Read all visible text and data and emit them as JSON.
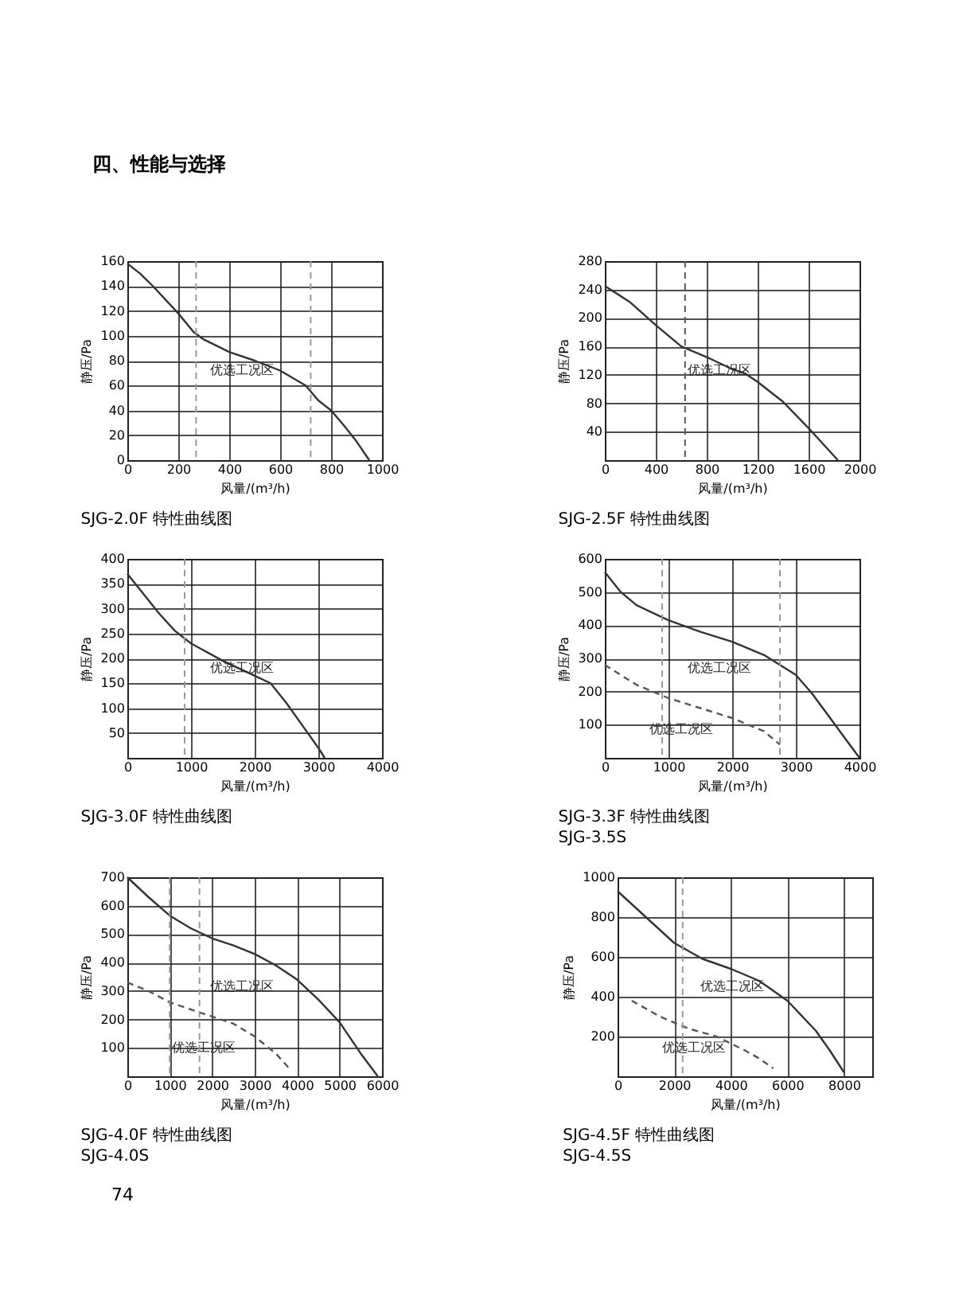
{
  "chart_data": [
    {
      "type": "line",
      "title": "SJG-2.0F 特性曲线图",
      "xlabel": "风量/(m³/h)",
      "ylabel": "静压/Pa",
      "xlim": [
        0,
        1000
      ],
      "xticks": [
        0,
        200,
        400,
        600,
        800,
        1000
      ],
      "ylim": [
        0,
        160
      ],
      "yticks": [
        0,
        20,
        40,
        60,
        80,
        100,
        120,
        140,
        160
      ],
      "grid": true,
      "marker": "none",
      "series": [
        {
          "color": "#333333",
          "line_style": "solid",
          "x": [
            0,
            50,
            100,
            200,
            260,
            300,
            400,
            500,
            600,
            700,
            750,
            800,
            850,
            900,
            950
          ],
          "values": [
            158,
            150,
            140,
            118,
            103,
            97,
            87,
            80,
            72,
            60,
            48,
            40,
            28,
            15,
            0
          ]
        }
      ],
      "ref_lines": [
        {
          "axis": "x",
          "value": 270,
          "color": "#999999",
          "line_style": "dashed"
        },
        {
          "axis": "x",
          "value": 720,
          "color": "#999999",
          "line_style": "dashed"
        }
      ],
      "annotations": [
        "四、性能与选择",
        "优选工况区"
      ]
    },
    {
      "type": "line",
      "title": "SJG-2.5F 特性曲线图",
      "xlabel": "风量/(m³/h)",
      "ylabel": "静压/Pa",
      "xlim": [
        0,
        2000
      ],
      "xticks": [
        0,
        400,
        800,
        1200,
        1600,
        2000
      ],
      "ylim": [
        0,
        280
      ],
      "yticks": [
        40,
        80,
        120,
        160,
        200,
        240,
        280
      ],
      "grid": true,
      "marker": "none",
      "series": [
        {
          "color": "#333333",
          "line_style": "solid",
          "x": [
            0,
            200,
            400,
            600,
            800,
            1000,
            1100,
            1200,
            1400,
            1600,
            1830
          ],
          "values": [
            245,
            222,
            190,
            160,
            145,
            128,
            122,
            110,
            82,
            45,
            0
          ]
        }
      ],
      "ref_lines": [
        {
          "axis": "x",
          "value": 630,
          "color": "#555555",
          "line_style": "dashed"
        }
      ],
      "annotations": [
        "优选工况区"
      ]
    },
    {
      "type": "line",
      "title": "SJG-3.0F 特性曲线图",
      "xlabel": "风量/(m³/h)",
      "ylabel": "静压/Pa",
      "xlim": [
        0,
        4000
      ],
      "xticks": [
        0,
        1000,
        2000,
        3000,
        4000
      ],
      "ylim": [
        0,
        400
      ],
      "yticks": [
        50,
        100,
        150,
        200,
        250,
        300,
        350,
        400
      ],
      "grid": true,
      "marker": "none",
      "series": [
        {
          "color": "#333333",
          "line_style": "solid",
          "x": [
            0,
            250,
            500,
            750,
            1000,
            1500,
            2000,
            2250,
            2500,
            2750,
            3000,
            3100
          ],
          "values": [
            370,
            330,
            290,
            255,
            230,
            195,
            165,
            150,
            110,
            65,
            20,
            0
          ]
        }
      ],
      "ref_lines": [
        {
          "axis": "x",
          "value": 900,
          "color": "#999999",
          "line_style": "dashed"
        }
      ],
      "annotations": [
        "优选工况区"
      ]
    },
    {
      "type": "line",
      "title": "SJG-3.3F 特性曲线图",
      "subtitle": "SJG-3.5S",
      "xlabel": "风量/(m³/h)",
      "ylabel": "静压/Pa",
      "xlim": [
        0,
        4000
      ],
      "xticks": [
        0,
        1000,
        2000,
        3000,
        4000
      ],
      "ylim": [
        0,
        600
      ],
      "yticks": [
        100,
        200,
        300,
        400,
        500,
        600
      ],
      "grid": true,
      "marker": "none",
      "series": [
        {
          "color": "#333333",
          "line_style": "solid",
          "x": [
            0,
            250,
            500,
            1000,
            1500,
            2000,
            2500,
            3000,
            3250,
            3500,
            3750,
            4000
          ],
          "values": [
            560,
            500,
            460,
            415,
            380,
            350,
            310,
            250,
            195,
            130,
            65,
            0
          ]
        },
        {
          "color": "#555555",
          "line_style": "dashed",
          "x": [
            0,
            500,
            1000,
            1500,
            2000,
            2500,
            2750
          ],
          "values": [
            280,
            220,
            180,
            150,
            120,
            80,
            40
          ]
        }
      ],
      "ref_lines": [
        {
          "axis": "x",
          "value": 900,
          "color": "#999999",
          "line_style": "dashed"
        },
        {
          "axis": "x",
          "value": 2750,
          "color": "#999999",
          "line_style": "dashed"
        }
      ],
      "annotations": [
        "优选工况区",
        "优选工况区"
      ]
    },
    {
      "type": "line",
      "title": "SJG-4.0F 特性曲线图",
      "subtitle": "SJG-4.0S",
      "xlabel": "风量/(m³/h)",
      "ylabel": "静压/Pa",
      "xlim": [
        0,
        6000
      ],
      "xticks": [
        0,
        1000,
        2000,
        3000,
        4000,
        5000,
        6000
      ],
      "ylim": [
        0,
        700
      ],
      "yticks": [
        100,
        200,
        300,
        400,
        500,
        600,
        700
      ],
      "grid": true,
      "marker": "none",
      "series": [
        {
          "color": "#333333",
          "line_style": "solid",
          "x": [
            0,
            500,
            1000,
            1500,
            2000,
            2500,
            3000,
            3500,
            4000,
            4500,
            5000,
            5500,
            5900
          ],
          "values": [
            700,
            630,
            565,
            520,
            485,
            460,
            430,
            390,
            340,
            270,
            190,
            80,
            0
          ]
        },
        {
          "color": "#555555",
          "line_style": "dashed",
          "x": [
            0,
            500,
            1000,
            1500,
            2000,
            2500,
            3000,
            3500,
            3800
          ],
          "values": [
            330,
            300,
            260,
            235,
            210,
            185,
            140,
            80,
            30
          ]
        }
      ],
      "ref_lines": [
        {
          "axis": "x",
          "value": 1000,
          "color": "#999999",
          "line_style": "dashed"
        },
        {
          "axis": "x",
          "value": 1700,
          "color": "#999999",
          "line_style": "dashed"
        }
      ],
      "annotations": [
        "优选工况区",
        "优选工况区"
      ]
    },
    {
      "type": "line",
      "title": "SJG-4.5F 特性曲线图",
      "subtitle": "SJG-4.5S",
      "xlabel": "风量/(m³/h)",
      "ylabel": "静压/Pa",
      "xlim": [
        0,
        9000
      ],
      "xticks": [
        0,
        2000,
        4000,
        6000,
        8000
      ],
      "ylim": [
        0,
        1000
      ],
      "yticks": [
        200,
        400,
        600,
        800,
        1000
      ],
      "grid": true,
      "marker": "none",
      "series": [
        {
          "color": "#333333",
          "line_style": "solid",
          "x": [
            0,
            1000,
            2000,
            3000,
            4000,
            5000,
            6000,
            7000,
            7500,
            8000
          ],
          "values": [
            930,
            800,
            670,
            590,
            540,
            480,
            380,
            230,
            130,
            20
          ]
        },
        {
          "color": "#555555",
          "line_style": "dashed",
          "x": [
            500,
            1500,
            2500,
            3500,
            4500,
            5000,
            5500
          ],
          "values": [
            380,
            300,
            240,
            200,
            130,
            90,
            40
          ]
        }
      ],
      "ref_lines": [
        {
          "axis": "x",
          "value": 2300,
          "color": "#999999",
          "line_style": "dashed"
        }
      ],
      "annotations": [
        "优选工况区",
        "优选工况区",
        "74"
      ]
    }
  ]
}
